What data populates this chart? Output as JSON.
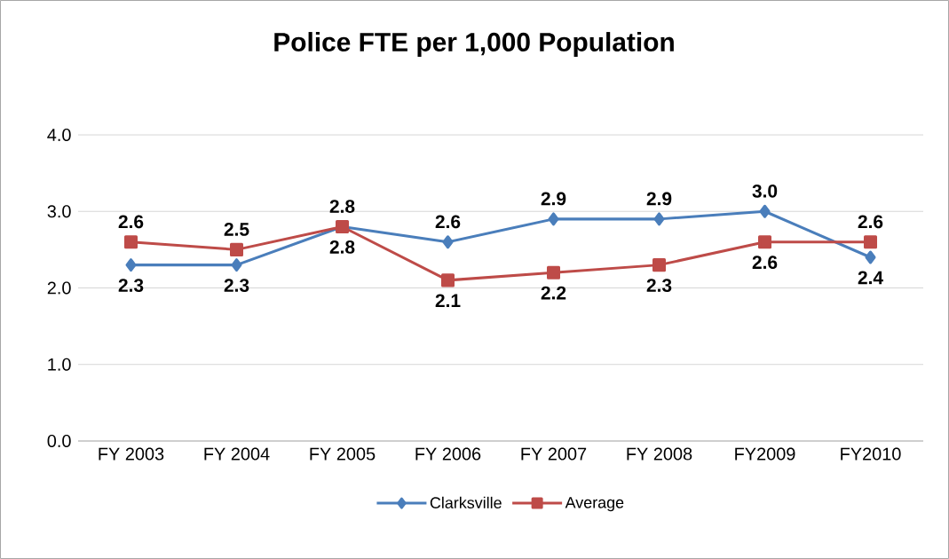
{
  "chart_data": {
    "type": "line",
    "title": "Police FTE per 1,000 Population",
    "categories": [
      "FY 2003",
      "FY 2004",
      "FY 2005",
      "FY 2006",
      "FY 2007",
      "FY 2008",
      "FY2009",
      "FY2010"
    ],
    "series": [
      {
        "name": "Clarksville",
        "color": "#4a7ebb",
        "marker": "diamond",
        "values": [
          2.3,
          2.3,
          2.8,
          2.6,
          2.9,
          2.9,
          3.0,
          2.4
        ],
        "value_labels": [
          "2.3",
          "2.3",
          "2.8",
          "2.6",
          "2.9",
          "2.9",
          "3.0",
          "2.4"
        ]
      },
      {
        "name": "Average",
        "color": "#be4b48",
        "marker": "square",
        "values": [
          2.6,
          2.5,
          2.8,
          2.1,
          2.2,
          2.3,
          2.6,
          2.6
        ],
        "value_labels": [
          "2.6",
          "2.5",
          "2.8",
          "2.1",
          "2.2",
          "2.3",
          "2.6",
          "2.6"
        ]
      }
    ],
    "ylim": [
      0,
      4
    ],
    "yticks": [
      {
        "value": 0,
        "label": "0.0"
      },
      {
        "value": 1,
        "label": "1.0"
      },
      {
        "value": 2,
        "label": "2.0"
      },
      {
        "value": 3,
        "label": "3.0"
      },
      {
        "value": 4,
        "label": "4.0"
      }
    ],
    "grid": "y",
    "legend": "bottom",
    "line_style": "solid"
  }
}
